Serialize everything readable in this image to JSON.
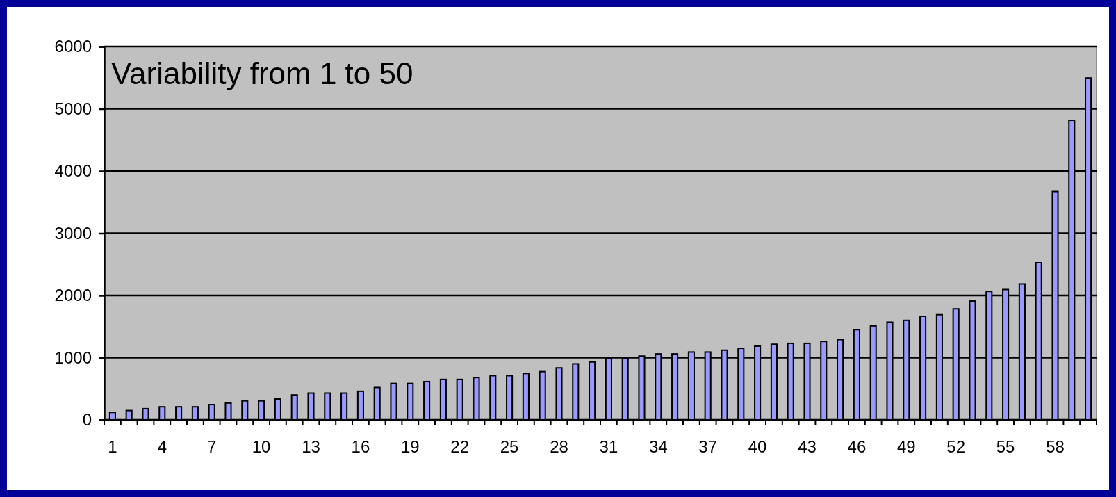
{
  "chart_data": {
    "type": "bar",
    "categories": [
      "1",
      null,
      null,
      "4",
      null,
      null,
      "7",
      null,
      null,
      "10",
      null,
      null,
      "13",
      null,
      null,
      "16",
      null,
      null,
      "19",
      null,
      null,
      "22",
      null,
      null,
      "25",
      null,
      null,
      "28",
      null,
      null,
      "31",
      null,
      null,
      "34",
      null,
      null,
      "37",
      null,
      null,
      "40",
      null,
      null,
      "43",
      null,
      null,
      "46",
      null,
      null,
      "49",
      null,
      null,
      "52",
      null,
      null,
      "55",
      null,
      null,
      "58",
      null,
      null
    ],
    "values": [
      120,
      150,
      180,
      210,
      210,
      210,
      245,
      270,
      305,
      305,
      335,
      400,
      430,
      430,
      430,
      460,
      520,
      585,
      585,
      615,
      650,
      650,
      680,
      710,
      710,
      745,
      775,
      835,
      900,
      930,
      990,
      990,
      1025,
      1060,
      1060,
      1090,
      1090,
      1120,
      1150,
      1185,
      1215,
      1230,
      1230,
      1260,
      1290,
      1450,
      1510,
      1570,
      1600,
      1665,
      1690,
      1785,
      1910,
      2065,
      2095,
      2185,
      2525,
      3670,
      4815,
      5495
    ],
    "color": "#9999ff",
    "ylim": [
      0,
      6000
    ],
    "yticks": [
      0,
      1000,
      2000,
      3000,
      4000,
      5000,
      6000
    ],
    "grid": "y",
    "annotations": [
      "Variability from 1 to 50"
    ]
  }
}
